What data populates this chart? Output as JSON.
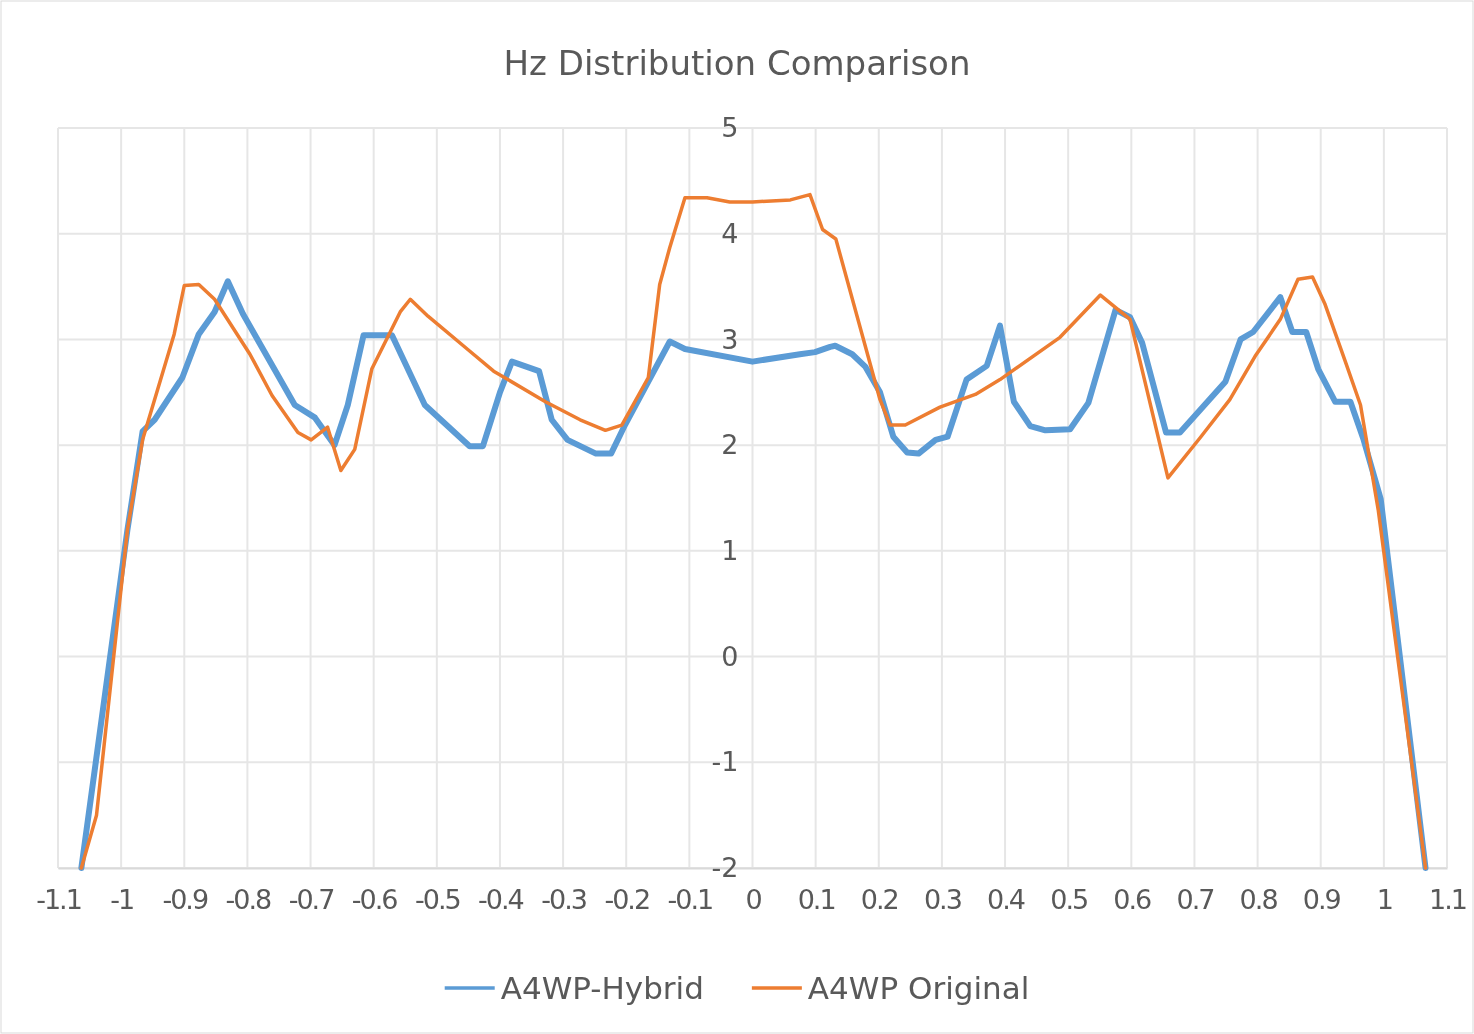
{
  "chart_data": {
    "type": "line",
    "title": "Hz Distribution Comparison",
    "xlim": [
      -1.1,
      1.1
    ],
    "xticks": [
      -1.1,
      -1,
      -0.9,
      -0.8,
      -0.7,
      -0.6,
      -0.5,
      -0.4,
      -0.3,
      -0.2,
      -0.1,
      0,
      0.1,
      0.2,
      0.3,
      0.4,
      0.5,
      0.6,
      0.7,
      0.8,
      0.9,
      1,
      1.1
    ],
    "ylim": [
      -2,
      5
    ],
    "yticks": [
      -2,
      -1,
      0,
      1,
      2,
      3,
      4,
      5
    ],
    "grid": true,
    "legend": "bottom",
    "series": [
      {
        "name": "A4WP-Hybrid",
        "color": "#5b9bd5",
        "x": [
          -1.063,
          -0.99,
          -0.966,
          -0.947,
          -0.903,
          -0.877,
          -0.852,
          -0.831,
          -0.807,
          -0.725,
          -0.693,
          -0.662,
          -0.641,
          -0.616,
          -0.571,
          -0.519,
          -0.448,
          -0.427,
          -0.4,
          -0.381,
          -0.338,
          -0.318,
          -0.293,
          -0.248,
          -0.224,
          -0.202,
          -0.131,
          -0.107,
          0,
          0.075,
          0.099,
          0.123,
          0.131,
          0.158,
          0.179,
          0.202,
          0.223,
          0.245,
          0.263,
          0.29,
          0.309,
          0.339,
          0.371,
          0.392,
          0.414,
          0.44,
          0.464,
          0.503,
          0.532,
          0.575,
          0.598,
          0.617,
          0.655,
          0.677,
          0.749,
          0.773,
          0.793,
          0.836,
          0.855,
          0.877,
          0.896,
          0.923,
          0.947,
          0.968,
          0.995,
          1.066
        ],
        "values": [
          -2,
          1.2,
          2.13,
          2.24,
          2.64,
          3.05,
          3.26,
          3.55,
          3.24,
          2.38,
          2.26,
          2,
          2.38,
          3.04,
          3.04,
          2.38,
          1.99,
          1.99,
          2.5,
          2.79,
          2.7,
          2.24,
          2.05,
          1.92,
          1.92,
          2.19,
          2.98,
          2.91,
          2.79,
          2.86,
          2.88,
          2.93,
          2.94,
          2.86,
          2.74,
          2.5,
          2.08,
          1.93,
          1.92,
          2.05,
          2.08,
          2.62,
          2.75,
          3.13,
          2.41,
          2.18,
          2.14,
          2.15,
          2.4,
          3.28,
          3.21,
          2.97,
          2.12,
          2.12,
          2.6,
          3,
          3.07,
          3.4,
          3.07,
          3.07,
          2.72,
          2.41,
          2.41,
          2.05,
          1.49,
          -2
        ]
      },
      {
        "name": "A4WP Original",
        "color": "#ed7d31",
        "x": [
          -1.063,
          -1.039,
          -0.99,
          -0.966,
          -0.916,
          -0.9,
          -0.877,
          -0.852,
          -0.796,
          -0.761,
          -0.72,
          -0.699,
          -0.673,
          -0.652,
          -0.63,
          -0.603,
          -0.558,
          -0.542,
          -0.514,
          -0.45,
          -0.41,
          -0.328,
          -0.273,
          -0.233,
          -0.207,
          -0.165,
          -0.147,
          -0.131,
          -0.107,
          -0.072,
          -0.036,
          0,
          0.06,
          0.091,
          0.111,
          0.132,
          0.202,
          0.218,
          0.242,
          0.297,
          0.353,
          0.392,
          0.487,
          0.551,
          0.598,
          0.658,
          0.709,
          0.756,
          0.796,
          0.836,
          0.864,
          0.887,
          0.907,
          0.939,
          0.963,
          0.991,
          1.066
        ],
        "values": [
          -2,
          -1.5,
          1.2,
          2.05,
          3.05,
          3.51,
          3.52,
          3.38,
          2.86,
          2.47,
          2.12,
          2.05,
          2.17,
          1.76,
          1.96,
          2.72,
          3.26,
          3.38,
          3.22,
          2.9,
          2.7,
          2.41,
          2.24,
          2.14,
          2.19,
          2.64,
          3.52,
          3.87,
          4.34,
          4.34,
          4.3,
          4.3,
          4.32,
          4.37,
          4.04,
          3.95,
          2.43,
          2.19,
          2.19,
          2.36,
          2.48,
          2.62,
          3.02,
          3.42,
          3.19,
          1.69,
          2.07,
          2.43,
          2.84,
          3.19,
          3.57,
          3.59,
          3.33,
          2.79,
          2.38,
          1.39,
          -2
        ]
      }
    ]
  }
}
